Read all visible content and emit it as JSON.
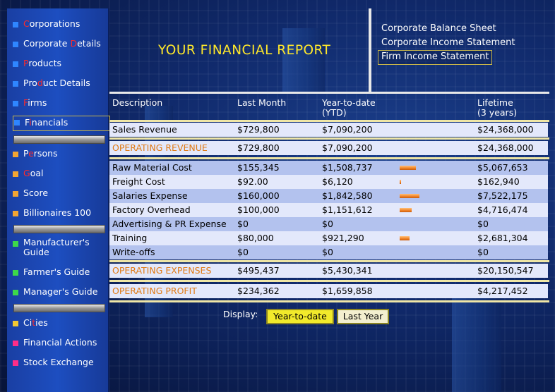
{
  "sidebar": {
    "items": [
      {
        "pre": "",
        "hl": "C",
        "post": "orporations",
        "color": "b-blue"
      },
      {
        "pre": "Corporate ",
        "hl": "D",
        "post": "etails",
        "color": "b-blue"
      },
      {
        "pre": "",
        "hl": "P",
        "post": "roducts",
        "color": "b-blue"
      },
      {
        "pre": "Pro",
        "hl": "d",
        "post": "uct Details",
        "color": "b-blue"
      },
      {
        "pre": "",
        "hl": "F",
        "post": "irms",
        "color": "b-blue"
      },
      {
        "pre": "F",
        "hl": "i",
        "post": "nancials",
        "color": "b-blue"
      },
      {
        "pre": "P",
        "hl": "e",
        "post": "rsons",
        "color": "b-orange"
      },
      {
        "pre": "",
        "hl": "G",
        "post": "oal",
        "color": "b-orange"
      },
      {
        "pre": "Score",
        "hl": "",
        "post": "",
        "color": "b-orange"
      },
      {
        "pre": "Billionaires 100",
        "hl": "",
        "post": "",
        "color": "b-orange"
      },
      {
        "pre": "Manufacturer's",
        "hl": "",
        "post": "",
        "line2": "Guide",
        "color": "b-green"
      },
      {
        "pre": "Farmer's Guide",
        "hl": "",
        "post": "",
        "color": "b-green"
      },
      {
        "pre": "Manager's Guide",
        "hl": "",
        "post": "",
        "color": "b-green"
      },
      {
        "pre": "Ci",
        "hl": "t",
        "post": "ies",
        "color": "b-yellow"
      },
      {
        "pre": "Financial Actions",
        "hl": "",
        "post": "",
        "color": "b-pink"
      },
      {
        "pre": "Stock Exchange",
        "hl": "",
        "post": "",
        "color": "b-pink"
      }
    ]
  },
  "header": {
    "title": "YOUR FINANCIAL REPORT",
    "links": [
      "Corporate Balance Sheet",
      "Corporate Income Statement",
      "Firm Income Statement"
    ]
  },
  "table": {
    "headers": {
      "description": "Description",
      "last_month": "Last Month",
      "ytd_line1": "Year-to-date",
      "ytd_line2": "(YTD)",
      "lifetime_line1": "Lifetime",
      "lifetime_line2": "(3 years)"
    },
    "revenue": {
      "desc": "Sales Revenue",
      "last_month": "$729,800",
      "ytd": "$7,090,200",
      "lifetime": "$24,368,000"
    },
    "operating_revenue": {
      "desc": "OPERATING REVENUE",
      "last_month": "$729,800",
      "ytd": "$7,090,200",
      "lifetime": "$24,368,000"
    },
    "expenses": [
      {
        "desc": "Raw Material Cost",
        "last_month": "$155,345",
        "ytd": "$1,508,737",
        "lifetime": "$5,067,653",
        "bar": 0.28
      },
      {
        "desc": "Freight Cost",
        "last_month": "$92.00",
        "ytd": "$6,120",
        "lifetime": "$162,940",
        "bar": 0.01
      },
      {
        "desc": "Salaries Expense",
        "last_month": "$160,000",
        "ytd": "$1,842,580",
        "lifetime": "$7,522,175",
        "bar": 0.34
      },
      {
        "desc": "Factory Overhead",
        "last_month": "$100,000",
        "ytd": "$1,151,612",
        "lifetime": "$4,716,474",
        "bar": 0.21
      },
      {
        "desc": "Advertising & PR Expense",
        "last_month": "$0",
        "ytd": "$0",
        "lifetime": "$0",
        "bar": 0
      },
      {
        "desc": "Training",
        "last_month": "$80,000",
        "ytd": "$921,290",
        "lifetime": "$2,681,304",
        "bar": 0.17
      },
      {
        "desc": "Write-offs",
        "last_month": "$0",
        "ytd": "$0",
        "lifetime": "$0",
        "bar": 0
      }
    ],
    "operating_expenses": {
      "desc": "OPERATING EXPENSES",
      "last_month": "$495,437",
      "ytd": "$5,430,341",
      "lifetime": "$20,150,547"
    },
    "operating_profit": {
      "desc": "OPERATING PROFIT",
      "last_month": "$234,362",
      "ytd": "$1,659,858",
      "lifetime": "$4,217,452"
    }
  },
  "display": {
    "label": "Display:",
    "options": [
      "Year-to-date",
      "Last Year"
    ],
    "selected": "Year-to-date"
  }
}
